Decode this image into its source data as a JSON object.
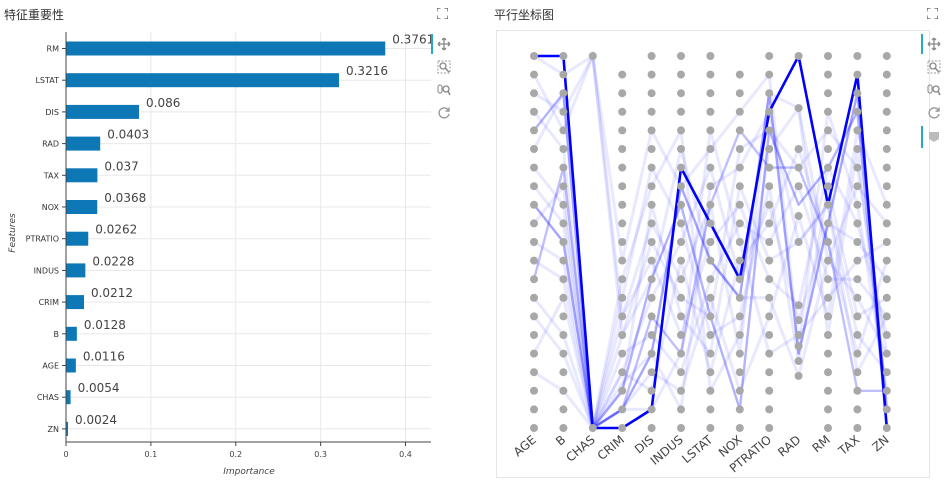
{
  "left_panel": {
    "title": "特征重要性"
  },
  "right_panel": {
    "title": "平行坐标图"
  },
  "colors": {
    "bar": "#0e78b7",
    "line": "#0000ff",
    "dot": "#a8a8a8",
    "accent": "#26a9c7",
    "grid": "#e8e8e8"
  },
  "icons": [
    "pan-icon",
    "box-zoom-icon",
    "wheel-zoom-icon",
    "reset-icon",
    "save-icon",
    "fullscreen-icon"
  ],
  "chart_data": [
    {
      "type": "bar",
      "orientation": "horizontal",
      "title": "",
      "xlabel": "Importance",
      "ylabel": "Features",
      "xlim": [
        0,
        0.43
      ],
      "xticks": [
        "0",
        "0.1",
        "0.2",
        "0.3",
        "0.4"
      ],
      "categories": [
        "RM",
        "LSTAT",
        "DIS",
        "RAD",
        "TAX",
        "NOX",
        "PTRATIO",
        "INDUS",
        "CRIM",
        "B",
        "AGE",
        "CHAS",
        "ZN"
      ],
      "values": [
        0.3761,
        0.3216,
        0.086,
        0.0403,
        0.037,
        0.0368,
        0.0262,
        0.0228,
        0.0212,
        0.0128,
        0.0116,
        0.0054,
        0.0024
      ],
      "labels": [
        "0.3761",
        "0.3216",
        "0.086",
        "0.0403",
        "0.037",
        "0.0368",
        "0.0262",
        "0.0228",
        "0.0212",
        "0.0128",
        "0.0116",
        "0.0054",
        "0.0024"
      ],
      "grid": true
    },
    {
      "type": "line",
      "subtype": "parallel-coordinates",
      "title": "",
      "axes": [
        "AGE",
        "B",
        "CHAS",
        "CRIM",
        "DIS",
        "INDUS",
        "LSTAT",
        "NOX",
        "PTRATIO",
        "RAD",
        "RM",
        "TAX",
        "ZN"
      ],
      "ylim": [
        0,
        1
      ],
      "levels": [
        [
          0,
          0.05,
          0.1,
          0.15,
          0.2,
          0.25,
          0.3,
          0.35,
          0.4,
          0.45,
          0.5,
          0.55,
          0.6,
          0.65,
          0.7,
          0.75,
          0.8,
          0.85,
          0.9,
          0.95,
          1
        ],
        [
          0,
          0.05,
          0.1,
          0.15,
          0.2,
          0.25,
          0.3,
          0.35,
          0.4,
          0.45,
          0.5,
          0.55,
          0.6,
          0.65,
          0.7,
          0.75,
          0.8,
          0.85,
          0.9,
          0.95,
          1
        ],
        [
          0,
          1
        ],
        [
          0,
          0.05,
          0.1,
          0.15,
          0.2,
          0.25,
          0.3,
          0.35,
          0.4,
          0.45,
          0.5,
          0.55,
          0.6,
          0.65,
          0.7,
          0.75,
          0.8,
          0.85,
          0.9,
          0.95
        ],
        [
          0,
          0.05,
          0.1,
          0.15,
          0.2,
          0.25,
          0.3,
          0.35,
          0.4,
          0.45,
          0.5,
          0.55,
          0.6,
          0.65,
          0.7,
          0.75,
          0.8,
          0.85,
          0.9,
          0.95,
          1
        ],
        [
          0,
          0.05,
          0.1,
          0.15,
          0.2,
          0.25,
          0.3,
          0.35,
          0.4,
          0.45,
          0.5,
          0.55,
          0.6,
          0.65,
          0.7,
          0.75,
          0.8,
          0.85,
          0.9,
          0.95,
          1
        ],
        [
          0,
          0.05,
          0.1,
          0.15,
          0.2,
          0.25,
          0.3,
          0.35,
          0.4,
          0.45,
          0.5,
          0.55,
          0.6,
          0.65,
          0.7,
          0.75,
          0.8,
          0.85,
          0.9,
          0.95,
          1
        ],
        [
          0,
          0.05,
          0.1,
          0.15,
          0.2,
          0.25,
          0.3,
          0.35,
          0.4,
          0.45,
          0.5,
          0.55,
          0.6,
          0.65,
          0.7,
          0.75,
          0.8,
          0.85,
          0.9,
          0.95
        ],
        [
          0,
          0.05,
          0.1,
          0.15,
          0.2,
          0.25,
          0.3,
          0.35,
          0.4,
          0.45,
          0.5,
          0.55,
          0.6,
          0.65,
          0.7,
          0.75,
          0.8,
          0.85,
          0.9,
          0.95,
          1
        ],
        [
          0.14,
          0.18,
          0.22,
          0.25,
          0.29,
          0.33,
          0.5,
          0.57,
          0.65,
          0.7,
          0.75,
          0.86,
          1
        ],
        [
          0,
          0.05,
          0.1,
          0.15,
          0.2,
          0.25,
          0.3,
          0.35,
          0.4,
          0.45,
          0.5,
          0.55,
          0.6,
          0.65,
          0.7,
          0.75,
          0.8,
          0.85,
          0.9,
          0.95,
          1
        ],
        [
          0,
          0.05,
          0.1,
          0.15,
          0.2,
          0.25,
          0.3,
          0.35,
          0.4,
          0.45,
          0.5,
          0.55,
          0.6,
          0.65,
          0.7,
          0.75,
          0.8,
          0.85,
          0.9,
          0.95,
          1
        ],
        [
          0,
          0.05,
          0.1,
          0.15,
          0.2,
          0.25,
          0.3,
          0.35,
          0.4,
          0.45,
          0.5,
          0.55,
          0.6,
          0.65,
          0.7,
          0.75,
          0.8,
          0.85,
          0.9,
          0.95,
          1
        ]
      ],
      "highlight_series": [
        [
          1,
          1,
          0,
          0,
          0.05,
          0.7,
          0.55,
          0.4,
          0.85,
          1,
          0.6,
          0.95,
          0
        ],
        [
          0.6,
          0.5,
          0,
          0.05,
          0.2,
          0.65,
          0.45,
          0.35,
          0.9,
          0.2,
          0.55,
          0.9,
          0.05
        ],
        [
          0.8,
          0.9,
          0,
          0.1,
          0.4,
          0.6,
          0.3,
          0.05,
          0.8,
          0.6,
          0.7,
          0.85,
          0
        ],
        [
          0.4,
          0.7,
          0,
          0.05,
          0.3,
          0.2,
          0.6,
          0.8,
          0.7,
          0.7,
          0.5,
          0.1,
          0.1
        ]
      ],
      "background_series": [
        [
          1,
          0.95,
          1,
          0.3,
          0.55,
          0.4,
          0.6,
          0.2,
          0.9,
          0.86,
          0.45,
          0.65,
          0.55
        ],
        [
          0.9,
          0.85,
          1,
          0.25,
          0.5,
          0.35,
          0.3,
          0.75,
          0.8,
          0.7,
          0.8,
          0.7,
          0.2
        ],
        [
          0.7,
          0.6,
          0,
          0.15,
          0.35,
          0.5,
          0.7,
          0.4,
          0.6,
          0.29,
          0.55,
          0.5,
          0.4
        ],
        [
          0.5,
          0.45,
          0,
          0.2,
          0.25,
          0.15,
          0.4,
          0.55,
          0.5,
          0.65,
          0.4,
          0.4,
          0.3
        ],
        [
          0.3,
          0.2,
          0,
          0.1,
          0.6,
          0.3,
          0.2,
          0.65,
          0.45,
          0.5,
          0.6,
          0.25,
          0.15
        ],
        [
          0.2,
          0.35,
          0,
          0.05,
          0.15,
          0.1,
          0.35,
          0.1,
          0.3,
          0.57,
          0.3,
          0.8,
          0.6
        ],
        [
          0.85,
          0.75,
          0,
          0.35,
          0.7,
          0.55,
          0.25,
          0.3,
          0.65,
          0.18,
          0.65,
          0.3,
          0.35
        ],
        [
          0.55,
          0.65,
          0,
          0.3,
          0.45,
          0.25,
          0.5,
          0.6,
          0.4,
          0.33,
          0.7,
          0.55,
          0.25
        ],
        [
          0.35,
          0.25,
          0,
          0.15,
          0.1,
          0.45,
          0.15,
          0.45,
          0.55,
          0.75,
          0.5,
          0.2,
          0.45
        ],
        [
          0.95,
          0.8,
          1,
          0.45,
          0.8,
          0.65,
          0.75,
          0.85,
          0.95,
          0.22,
          0.85,
          0.6,
          0.1
        ],
        [
          0.15,
          0.1,
          0,
          0.05,
          0.05,
          0.2,
          0.8,
          0.5,
          0.2,
          0.25,
          0.35,
          0.45,
          0.5
        ],
        [
          0.65,
          0.55,
          0,
          0.25,
          0.4,
          0.75,
          0.45,
          0.35,
          0.35,
          0.14,
          0.45,
          0.35,
          0.2
        ],
        [
          0.75,
          0.9,
          0,
          0.4,
          0.65,
          0.8,
          0.1,
          0.25,
          0.75,
          0.86,
          0.25,
          0.75,
          0.05
        ],
        [
          0.45,
          0.4,
          0,
          0.12,
          0.2,
          0.05,
          0.65,
          0.7,
          0.85,
          0.5,
          0.6,
          0.15,
          0.3
        ]
      ]
    }
  ]
}
